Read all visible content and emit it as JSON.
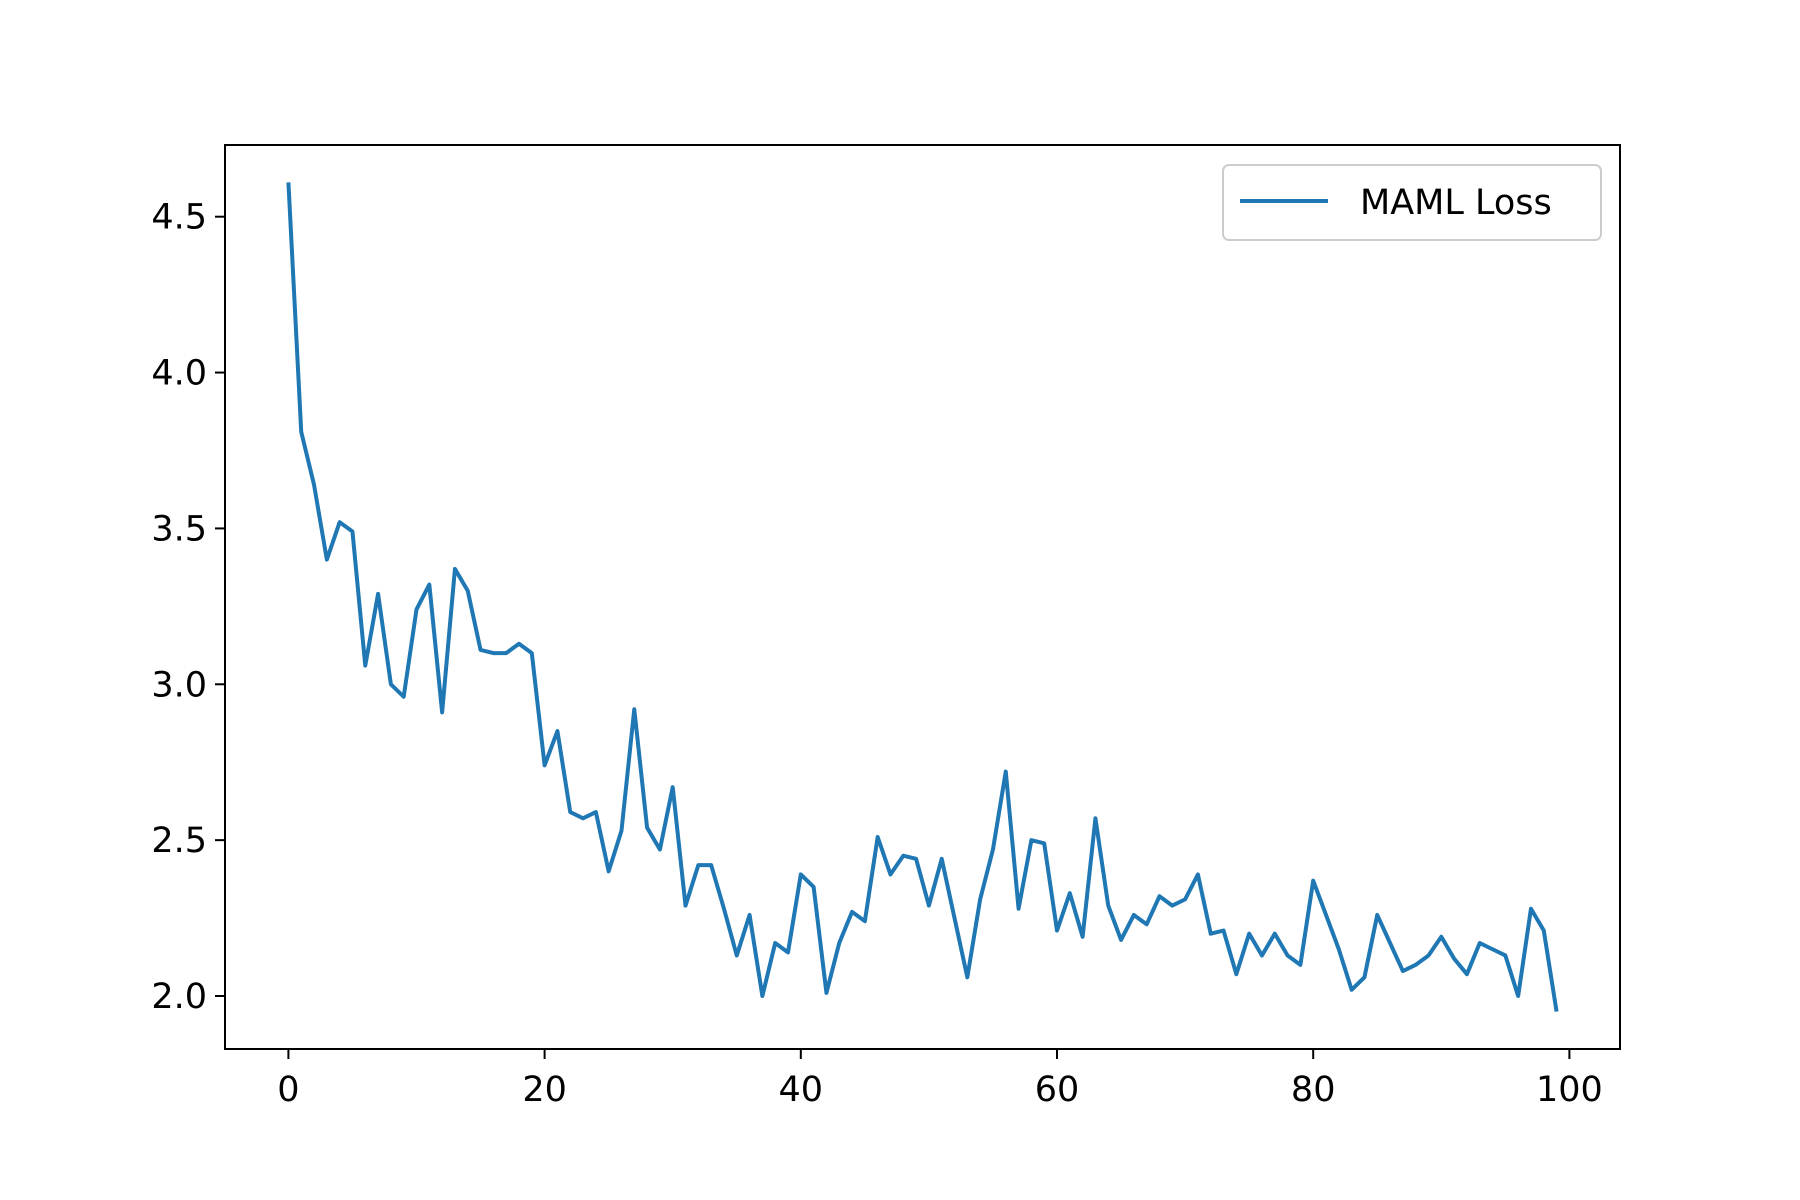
{
  "chart_data": {
    "type": "line",
    "title": "",
    "xlabel": "",
    "ylabel": "",
    "xlim": [
      -4.95,
      103.95
    ],
    "ylim": [
      1.83,
      4.73
    ],
    "xticks": [
      0,
      20,
      40,
      60,
      80,
      100
    ],
    "yticks": [
      2.0,
      2.5,
      3.0,
      3.5,
      4.0,
      4.5
    ],
    "xtick_labels": [
      "0",
      "20",
      "40",
      "60",
      "80",
      "100"
    ],
    "ytick_labels": [
      "2.0",
      "2.5",
      "3.0",
      "3.5",
      "4.0",
      "4.5"
    ],
    "legend_position": "top-right",
    "grid": false,
    "series": [
      {
        "name": "MAML Loss",
        "color": "#1f77b4",
        "x": [
          0,
          1,
          2,
          3,
          4,
          5,
          6,
          7,
          8,
          9,
          10,
          11,
          12,
          13,
          14,
          15,
          16,
          17,
          18,
          19,
          20,
          21,
          22,
          23,
          24,
          25,
          26,
          27,
          28,
          29,
          30,
          31,
          32,
          33,
          34,
          35,
          36,
          37,
          38,
          39,
          40,
          41,
          42,
          43,
          44,
          45,
          46,
          47,
          48,
          49,
          50,
          51,
          52,
          53,
          54,
          55,
          56,
          57,
          58,
          59,
          60,
          61,
          62,
          63,
          64,
          65,
          66,
          67,
          68,
          69,
          70,
          71,
          72,
          73,
          74,
          75,
          76,
          77,
          78,
          79,
          80,
          81,
          82,
          83,
          84,
          85,
          86,
          87,
          88,
          89,
          90,
          91,
          92,
          93,
          94,
          95,
          96,
          97,
          98,
          99
        ],
        "y": [
          4.61,
          3.81,
          3.64,
          3.4,
          3.52,
          3.49,
          3.06,
          3.29,
          3.0,
          2.96,
          3.24,
          3.32,
          2.91,
          3.37,
          3.3,
          3.11,
          3.1,
          3.1,
          3.13,
          3.1,
          2.74,
          2.85,
          2.59,
          2.57,
          2.59,
          2.4,
          2.53,
          2.92,
          2.54,
          2.47,
          2.67,
          2.29,
          2.42,
          2.42,
          2.28,
          2.13,
          2.26,
          2.0,
          2.17,
          2.14,
          2.39,
          2.35,
          2.01,
          2.17,
          2.27,
          2.24,
          2.51,
          2.39,
          2.45,
          2.44,
          2.29,
          2.44,
          2.25,
          2.06,
          2.31,
          2.47,
          2.72,
          2.28,
          2.5,
          2.49,
          2.21,
          2.33,
          2.19,
          2.57,
          2.29,
          2.18,
          2.26,
          2.23,
          2.32,
          2.29,
          2.31,
          2.39,
          2.2,
          2.21,
          2.07,
          2.2,
          2.13,
          2.2,
          2.13,
          2.1,
          2.37,
          2.26,
          2.15,
          2.02,
          2.06,
          2.26,
          2.17,
          2.08,
          2.1,
          2.13,
          2.19,
          2.12,
          2.07,
          2.17,
          2.15,
          2.13,
          2.0,
          2.28,
          2.21,
          1.95
        ]
      }
    ]
  }
}
